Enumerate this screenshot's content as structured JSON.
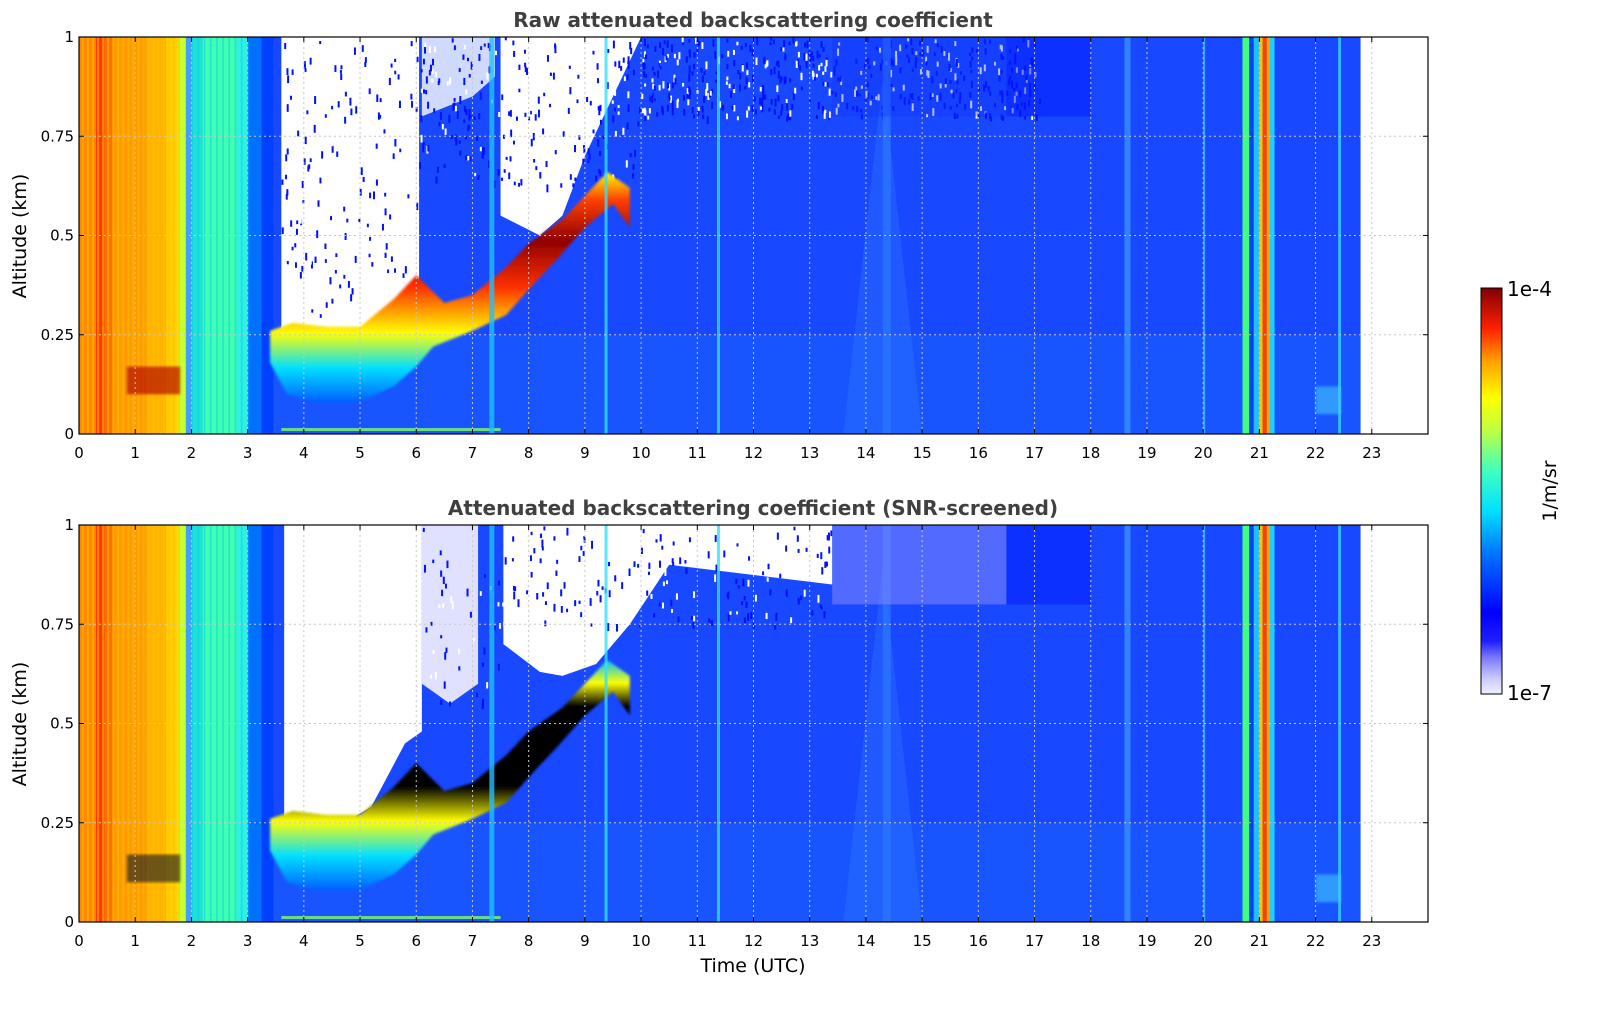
{
  "chart_data": [
    {
      "type": "heatmap",
      "title": "Raw attenuated backscattering coefficient",
      "ylabel": "Altitude (km)",
      "xlabel": "",
      "xlim": [
        0,
        24
      ],
      "ylim": [
        0,
        1
      ],
      "x_ticks": [
        "0",
        "1",
        "2",
        "3",
        "4",
        "5",
        "6",
        "7",
        "8",
        "9",
        "10",
        "11",
        "12",
        "13",
        "14",
        "15",
        "16",
        "17",
        "18",
        "19",
        "20",
        "21",
        "22",
        "23"
      ],
      "y_ticks": [
        "0",
        "0.25",
        "0.5",
        "0.75",
        "1"
      ],
      "grid": true,
      "data_extent_hours": [
        0,
        22.8
      ]
    },
    {
      "type": "heatmap",
      "title": "Attenuated backscattering coefficient (SNR-screened)",
      "ylabel": "Altitude (km)",
      "xlabel": "Time (UTC)",
      "xlim": [
        0,
        24
      ],
      "ylim": [
        0,
        1
      ],
      "x_ticks": [
        "0",
        "1",
        "2",
        "3",
        "4",
        "5",
        "6",
        "7",
        "8",
        "9",
        "10",
        "11",
        "12",
        "13",
        "14",
        "15",
        "16",
        "17",
        "18",
        "19",
        "20",
        "21",
        "22",
        "23"
      ],
      "y_ticks": [
        "0",
        "0.25",
        "0.5",
        "0.75",
        "1"
      ],
      "grid": true,
      "data_extent_hours": [
        0,
        22.8
      ]
    }
  ],
  "colorbar": {
    "label": "1/m/sr",
    "max_label": "1e-4",
    "min_label": "1e-7",
    "scale": "log",
    "colormap": "jet"
  },
  "colors": {
    "background": "#ffffff",
    "title_color": "#404040",
    "grid": "#c8c8c8"
  }
}
